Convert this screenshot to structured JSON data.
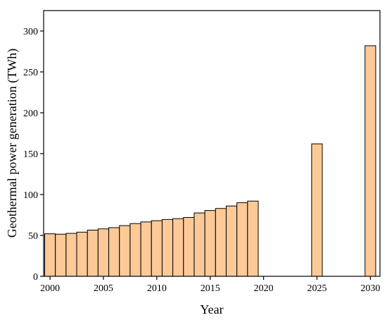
{
  "chart_data": {
    "type": "bar",
    "title": "",
    "xlabel": "Year",
    "ylabel": "Geothermal power generation (TWh)",
    "x": [
      2000,
      2001,
      2002,
      2003,
      2004,
      2005,
      2006,
      2007,
      2008,
      2009,
      2010,
      2011,
      2012,
      2013,
      2014,
      2015,
      2016,
      2017,
      2018,
      2019,
      2025,
      2030
    ],
    "values": [
      52,
      51.5,
      52.5,
      54,
      56.5,
      58,
      59.5,
      62,
      64.5,
      66.5,
      68,
      69.5,
      70.5,
      72,
      77.5,
      80.5,
      83,
      86,
      90,
      92,
      162,
      282
    ],
    "xlim": [
      1999.4,
      2030.9
    ],
    "ylim": [
      0,
      325
    ],
    "xticks": [
      2000,
      2005,
      2010,
      2015,
      2020,
      2025,
      2030
    ],
    "yticks": [
      0,
      50,
      100,
      150,
      200,
      250,
      300
    ],
    "grid": false,
    "bar_color": "#fdc997",
    "edge_color": "#000000"
  }
}
